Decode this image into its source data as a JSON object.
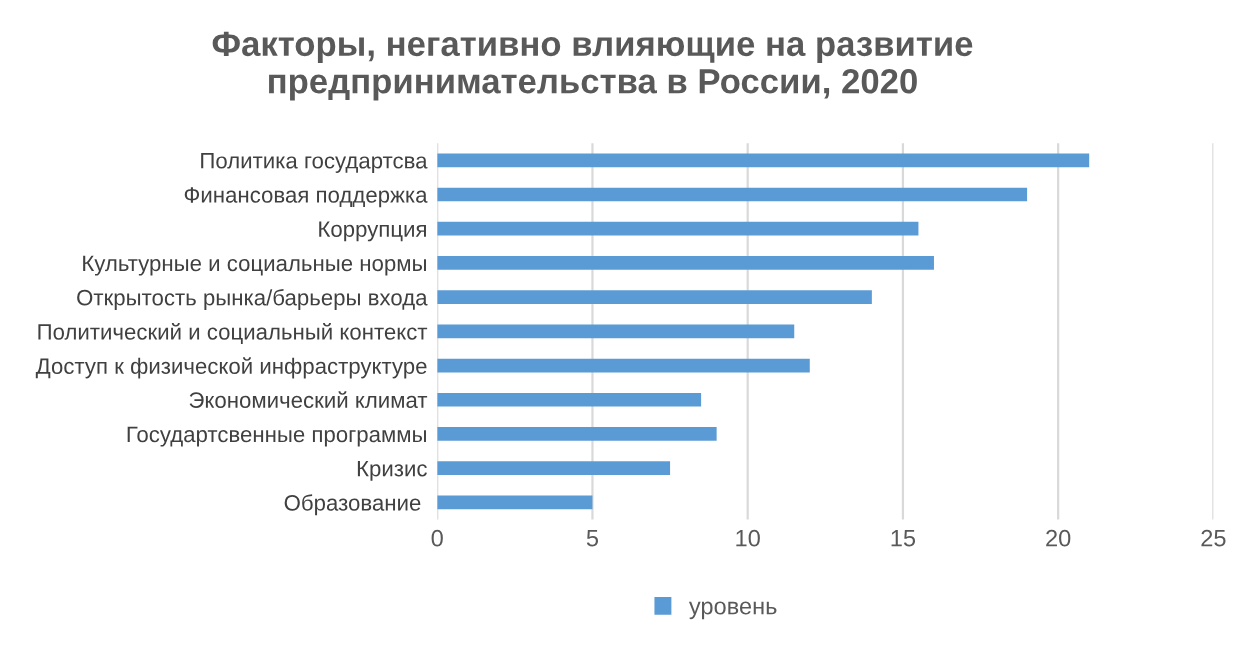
{
  "chart_data": {
    "type": "bar",
    "orientation": "horizontal",
    "title": "Факторы, негативно влияющие на развитие\nпредпринимательства в России, 2020",
    "categories": [
      "Политика государтсва",
      "Финансовая поддержка",
      "Коррупция",
      "Культурные и социальные нормы",
      "Открытость рынка/барьеры входа",
      "Политический и социальный контекст",
      "Доступ к физической инфраструктуре",
      "Экономический климат",
      "Государтсвенные программы",
      "Кризис",
      "Образование "
    ],
    "series": [
      {
        "name": "уровень",
        "color": "#5b9bd5",
        "values": [
          21,
          19,
          15.5,
          16,
          14,
          11.5,
          12,
          8.5,
          9,
          7.5,
          5
        ]
      }
    ],
    "xlim": [
      0,
      25
    ],
    "xticks": [
      0,
      5,
      10,
      15,
      20,
      25
    ],
    "grid": "x",
    "legend": "bottom"
  }
}
